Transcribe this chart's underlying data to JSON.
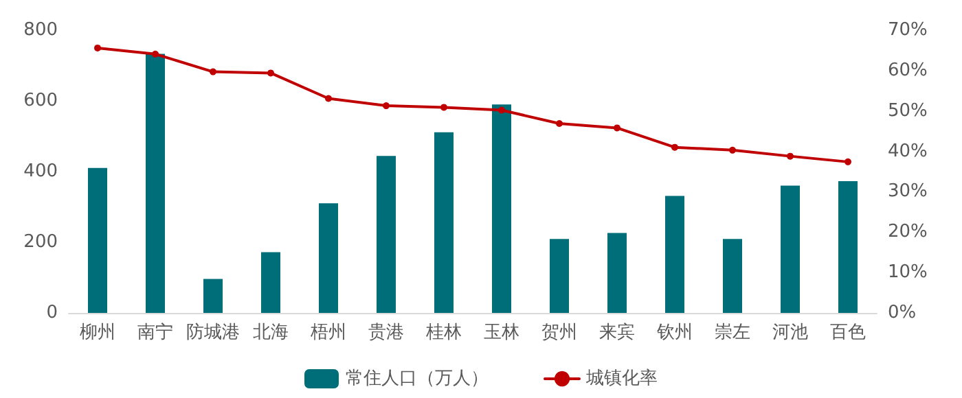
{
  "chart_data": {
    "type": "bar",
    "categories": [
      "柳州",
      "南宁",
      "防城港",
      "北海",
      "梧州",
      "贵港",
      "桂林",
      "玉林",
      "贺州",
      "来宾",
      "钦州",
      "崇左",
      "河池",
      "百色"
    ],
    "series": [
      {
        "name": "常住人口（万人）",
        "color": "#006e78",
        "values": [
          410,
          733,
          96,
          172,
          310,
          444,
          511,
          590,
          209,
          226,
          331,
          209,
          360,
          373
        ]
      },
      {
        "name": "城镇化率",
        "type": "line",
        "axis": "y2",
        "color": "#c00000",
        "marker": "circle",
        "values": [
          65.6,
          64.1,
          59.7,
          59.4,
          53.1,
          51.3,
          50.9,
          50.2,
          46.9,
          45.8,
          41.0,
          40.3,
          38.8,
          37.4
        ]
      }
    ],
    "ylim": [
      0,
      800
    ],
    "yticks": [
      0,
      200,
      400,
      600,
      800
    ],
    "y2lim": [
      0,
      70
    ],
    "y2ticks": [
      {
        "value": 0,
        "label": "0%"
      },
      {
        "value": 10,
        "label": "10%"
      },
      {
        "value": 20,
        "label": "20%"
      },
      {
        "value": 30,
        "label": "30%"
      },
      {
        "value": 40,
        "label": "40%"
      },
      {
        "value": 50,
        "label": "50%"
      },
      {
        "value": 60,
        "label": "60%"
      },
      {
        "value": 70,
        "label": "70%"
      }
    ],
    "grid": false,
    "legend": "bottom"
  }
}
